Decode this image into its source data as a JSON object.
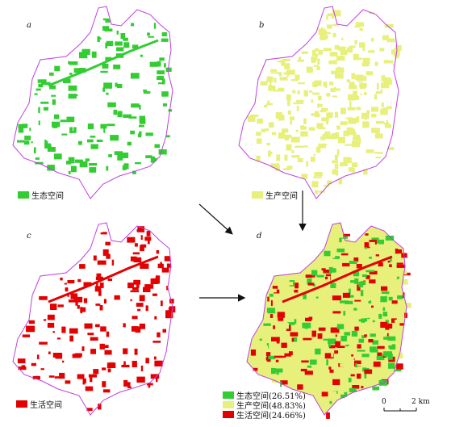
{
  "panels": {
    "a": {
      "letter": "a",
      "legend_label": "生态空间",
      "fill": "#ffffff",
      "patch": "#33cc33"
    },
    "b": {
      "letter": "b",
      "legend_label": "生产空间",
      "fill": "#ffffff",
      "patch": "#e6f07a"
    },
    "c": {
      "letter": "c",
      "legend_label": "生活空间",
      "fill": "#ffffff",
      "patch": "#e30000"
    },
    "d": {
      "letter": "d"
    }
  },
  "legend_d": [
    {
      "label": "生态空间(26.51%)",
      "color": "#33cc33",
      "percent": 26.51
    },
    {
      "label": "生产空间(48.83%)",
      "color": "#e6f07a",
      "percent": 48.83
    },
    {
      "label": "生活空间(24.66%)",
      "color": "#e30000",
      "percent": 24.66
    }
  ],
  "boundary_color": "#c040e0",
  "arrow_color": "#111111",
  "scale_bar": {
    "zero": "0",
    "value": "2",
    "unit": "km"
  }
}
